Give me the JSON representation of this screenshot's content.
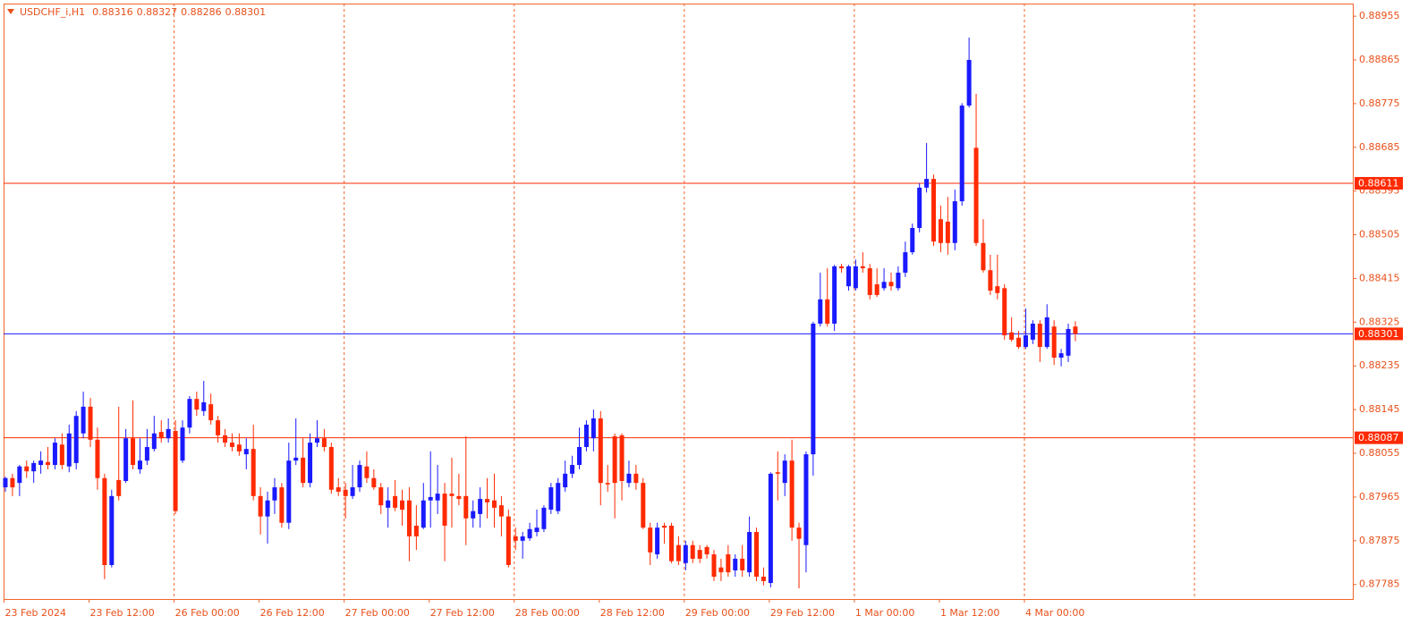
{
  "chart_data": {
    "type": "candlestick",
    "title": "USDCHF_i,H1",
    "header_values": [
      0.88316,
      0.88327,
      0.88286,
      0.88301
    ],
    "up_color": "#1a1aff",
    "down_color": "#ff2a00",
    "grid": true,
    "categories": [
      "23 Feb 2024",
      null,
      null,
      null,
      null,
      null,
      null,
      null,
      null,
      null,
      null,
      null,
      "23 Feb 12:00",
      null,
      null,
      null,
      null,
      null,
      null,
      null,
      null,
      null,
      null,
      null,
      "26 Feb 00:00",
      null,
      null,
      null,
      null,
      null,
      null,
      null,
      null,
      null,
      null,
      null,
      "26 Feb 12:00",
      null,
      null,
      null,
      null,
      null,
      null,
      null,
      null,
      null,
      null,
      null,
      "27 Feb 00:00",
      null,
      null,
      null,
      null,
      null,
      null,
      null,
      null,
      null,
      null,
      null,
      "27 Feb 12:00",
      null,
      null,
      null,
      null,
      null,
      null,
      null,
      null,
      null,
      null,
      null,
      "28 Feb 00:00",
      null,
      null,
      null,
      null,
      null,
      null,
      null,
      null,
      null,
      null,
      null,
      "28 Feb 12:00",
      null,
      null,
      null,
      null,
      null,
      null,
      null,
      null,
      null,
      null,
      null,
      "29 Feb 00:00",
      null,
      null,
      null,
      null,
      null,
      null,
      null,
      null,
      null,
      null,
      null,
      "29 Feb 12:00",
      null,
      null,
      null,
      null,
      null,
      null,
      null,
      null,
      null,
      null,
      null,
      "1 Mar 00:00",
      null,
      null,
      null,
      null,
      null,
      null,
      null,
      null,
      null,
      null,
      null,
      "1 Mar 12:00",
      null,
      null,
      null,
      null,
      null,
      null,
      null,
      null,
      null,
      null,
      null,
      "4 Mar 00:00",
      null,
      null,
      null,
      null,
      null,
      null,
      null
    ],
    "open": [
      0.87985,
      0.88004,
      0.87994,
      0.88028,
      0.88018,
      0.88031,
      0.88037,
      0.88031,
      0.88073,
      0.88028,
      0.88035,
      0.88096,
      0.88151,
      0.88083,
      0.88004,
      0.87825,
      0.88,
      0.87998,
      0.88086,
      0.88022,
      0.8804,
      0.88064,
      0.88099,
      0.88086,
      0.88101,
      0.8804,
      0.88108,
      0.88167,
      0.88142,
      0.88156,
      0.88123,
      0.88092,
      0.88077,
      0.88073,
      0.88053,
      0.88064,
      0.87967,
      0.87925,
      0.87958,
      0.87985,
      0.87912,
      0.8804,
      0.88046,
      0.87994,
      0.88077,
      0.88086,
      0.88068,
      0.87985,
      0.8798,
      0.87967,
      0.87985,
      0.88028,
      0.88004,
      0.87985,
      0.87943,
      0.87967,
      0.87958,
      0.87958,
      0.87906,
      0.87902,
      0.87958,
      0.87958,
      0.87972,
      0.87972,
      0.87967,
      0.87967,
      0.87921,
      0.8793,
      0.87961,
      0.87958,
      0.87948,
      0.87925,
      0.87884,
      0.87875,
      0.8788,
      0.87893,
      0.87899,
      0.87939,
      0.87936,
      0.87985,
      0.88013,
      0.88031,
      0.88068,
      0.88086,
      0.88127,
      0.87994,
      0.8809,
      0.88092,
      0.87994,
      0.88013,
      0.87994,
      0.87902,
      0.87847,
      0.87906,
      0.87906,
      0.87866,
      0.87829,
      0.87866,
      0.87856,
      0.87862,
      0.87847,
      0.8782,
      0.87847,
      0.87814,
      0.87838,
      0.8781,
      0.87893,
      0.87801,
      0.87788,
      0.88016,
      0.87994,
      0.8804,
      0.87902,
      0.87866,
      0.88053,
      0.88322,
      0.88372,
      0.88322,
      0.8844,
      0.88399,
      0.88395,
      0.8844,
      0.88436,
      0.88403,
      0.88395,
      0.88408,
      0.88395,
      0.88427,
      0.88469,
      0.88519,
      0.88602,
      0.8862,
      0.88537,
      0.88532,
      0.88488,
      0.88574,
      0.88771,
      0.88684,
      0.88488,
      0.88432,
      0.88399,
      0.88395,
      0.88304,
      0.88293,
      0.88274,
      0.88289,
      0.88322,
      0.88274,
      0.88316,
      0.88252,
      0.88256,
      0.88316
    ],
    "high": [
      0.88007,
      0.88013,
      0.88031,
      0.8804,
      0.8804,
      0.88059,
      0.88068,
      0.88086,
      0.88096,
      0.88114,
      0.88142,
      0.88182,
      0.88169,
      0.88108,
      0.88013,
      0.8798,
      0.88151,
      0.88105,
      0.88164,
      0.88086,
      0.88105,
      0.88132,
      0.88123,
      0.88127,
      0.88123,
      0.88123,
      0.88173,
      0.88182,
      0.88204,
      0.88178,
      0.88132,
      0.88105,
      0.88096,
      0.88096,
      0.88086,
      0.88114,
      0.87985,
      0.87976,
      0.88004,
      0.87994,
      0.88077,
      0.88127,
      0.88086,
      0.88096,
      0.88123,
      0.88105,
      0.88077,
      0.88004,
      0.87994,
      0.88031,
      0.8804,
      0.88059,
      0.88022,
      0.87994,
      0.87985,
      0.88,
      0.8798,
      0.87985,
      0.87948,
      0.87994,
      0.88059,
      0.88031,
      0.87994,
      0.88046,
      0.88013,
      0.8809,
      0.87958,
      0.87985,
      0.88004,
      0.88013,
      0.87967,
      0.87939,
      0.87902,
      0.87893,
      0.87912,
      0.87939,
      0.87948,
      0.87994,
      0.88004,
      0.8804,
      0.8805,
      0.88108,
      0.88123,
      0.88145,
      0.88142,
      0.88031,
      0.88096,
      0.88096,
      0.8804,
      0.88031,
      0.88004,
      0.87912,
      0.87912,
      0.87912,
      0.87912,
      0.87884,
      0.87875,
      0.87875,
      0.87866,
      0.87866,
      0.87856,
      0.87838,
      0.87866,
      0.87847,
      0.87866,
      0.87925,
      0.87902,
      0.8782,
      0.88016,
      0.88059,
      0.88053,
      0.88083,
      0.87912,
      0.88059,
      0.88326,
      0.88427,
      0.88436,
      0.88443,
      0.88445,
      0.88443,
      0.88454,
      0.88469,
      0.88445,
      0.88436,
      0.88436,
      0.88427,
      0.8844,
      0.88491,
      0.88528,
      0.88611,
      0.88694,
      0.88629,
      0.88565,
      0.88583,
      0.88598,
      0.88776,
      0.88911,
      0.88795,
      0.88537,
      0.88464,
      0.88464,
      0.88403,
      0.88335,
      0.88307,
      0.88353,
      0.88329,
      0.88329,
      0.88362,
      0.88329,
      0.8827,
      0.88322,
      0.88327
    ],
    "low": [
      0.87976,
      0.87967,
      0.87967,
      0.88004,
      0.87994,
      0.88013,
      0.88022,
      0.88022,
      0.88022,
      0.88016,
      0.88022,
      0.88086,
      0.88068,
      0.8798,
      0.87796,
      0.8782,
      0.87958,
      0.87994,
      0.88022,
      0.88013,
      0.88031,
      0.88059,
      0.88077,
      0.88077,
      0.8793,
      0.88035,
      0.88096,
      0.88132,
      0.88132,
      0.88114,
      0.88077,
      0.88068,
      0.88059,
      0.8805,
      0.88022,
      0.87958,
      0.87888,
      0.87869,
      0.8793,
      0.87902,
      0.87899,
      0.88031,
      0.87985,
      0.87985,
      0.88068,
      0.88059,
      0.87972,
      0.87967,
      0.87921,
      0.87961,
      0.87976,
      0.87994,
      0.8798,
      0.8793,
      0.87902,
      0.87936,
      0.87906,
      0.87833,
      0.87856,
      0.87899,
      0.87902,
      0.8793,
      0.87833,
      0.87902,
      0.87948,
      0.87866,
      0.87902,
      0.87902,
      0.87921,
      0.87902,
      0.87884,
      0.8782,
      0.87856,
      0.87838,
      0.87875,
      0.87884,
      0.87893,
      0.8793,
      0.8793,
      0.87976,
      0.88004,
      0.88022,
      0.88059,
      0.88059,
      0.87948,
      0.87976,
      0.87921,
      0.87958,
      0.87985,
      0.8798,
      0.87899,
      0.87825,
      0.87838,
      0.87869,
      0.87829,
      0.87825,
      0.87814,
      0.87829,
      0.87829,
      0.87838,
      0.87792,
      0.87792,
      0.87801,
      0.87801,
      0.87801,
      0.87801,
      0.87792,
      0.87783,
      0.87779,
      0.87958,
      0.87967,
      0.87875,
      0.87777,
      0.8781,
      0.88009,
      0.88316,
      0.88316,
      0.88307,
      0.88427,
      0.8839,
      0.8839,
      0.88427,
      0.88372,
      0.88377,
      0.8839,
      0.8839,
      0.8839,
      0.88418,
      0.88464,
      0.8851,
      0.88592,
      0.88482,
      0.88469,
      0.88464,
      0.88473,
      0.88565,
      0.88767,
      0.88482,
      0.88427,
      0.88381,
      0.88372,
      0.88289,
      0.88285,
      0.8827,
      0.8827,
      0.8828,
      0.88243,
      0.8827,
      0.88237,
      0.88234,
      0.88243,
      0.88286
    ],
    "close": [
      0.88004,
      0.87985,
      0.88028,
      0.88018,
      0.88035,
      0.8804,
      0.88031,
      0.88077,
      0.88031,
      0.88096,
      0.88132,
      0.88151,
      0.88083,
      0.88004,
      0.87825,
      0.87967,
      0.87967,
      0.88086,
      0.88031,
      0.8804,
      0.88068,
      0.88096,
      0.88086,
      0.88105,
      0.87936,
      0.88108,
      0.88167,
      0.88145,
      0.8816,
      0.88123,
      0.88092,
      0.88077,
      0.88068,
      0.88059,
      0.88064,
      0.87967,
      0.87925,
      0.87958,
      0.87985,
      0.87912,
      0.8804,
      0.88046,
      0.87994,
      0.88077,
      0.88086,
      0.88068,
      0.8798,
      0.87976,
      0.87967,
      0.87985,
      0.88031,
      0.88004,
      0.87985,
      0.87948,
      0.87958,
      0.87943,
      0.87939,
      0.87884,
      0.87884,
      0.87958,
      0.87965,
      0.87972,
      0.87906,
      0.87967,
      0.87961,
      0.87921,
      0.87936,
      0.87961,
      0.87954,
      0.87943,
      0.87925,
      0.87825,
      0.87875,
      0.87884,
      0.87899,
      0.87902,
      0.87943,
      0.87985,
      0.87994,
      0.88013,
      0.88031,
      0.88068,
      0.88114,
      0.88127,
      0.87994,
      0.87991,
      0.87994,
      0.87998,
      0.88013,
      0.87994,
      0.87902,
      0.87851,
      0.87902,
      0.87902,
      0.87833,
      0.87833,
      0.87866,
      0.87838,
      0.87838,
      0.87847,
      0.87801,
      0.8781,
      0.8781,
      0.87838,
      0.87814,
      0.87893,
      0.87801,
      0.87792,
      0.88013,
      0.88013,
      0.8804,
      0.87902,
      0.87879,
      0.88053,
      0.88322,
      0.88372,
      0.88322,
      0.8844,
      0.88436,
      0.8844,
      0.8844,
      0.88436,
      0.88381,
      0.88381,
      0.88408,
      0.88399,
      0.88427,
      0.88469,
      0.88519,
      0.88602,
      0.8862,
      0.88491,
      0.88488,
      0.88488,
      0.88574,
      0.88771,
      0.88865,
      0.88488,
      0.88432,
      0.8839,
      0.88385,
      0.88298,
      0.88289,
      0.88274,
      0.88298,
      0.88322,
      0.88274,
      0.88335,
      0.88252,
      0.88261,
      0.88311,
      0.88301
    ],
    "ylim": [
      0.87755,
      0.88981
    ],
    "yticks": [
      0.87785,
      0.87875,
      0.87965,
      0.88055,
      0.88145,
      0.88235,
      0.88325,
      0.88415,
      0.88505,
      0.88595,
      0.88685,
      0.88775,
      0.88865,
      0.88955
    ],
    "levels": [
      {
        "value": 0.88611,
        "color": "#ff2a00",
        "label_color": "#ff2a00"
      },
      {
        "value": 0.88301,
        "color": "#1a1aff",
        "label_color": "#ff2a00"
      },
      {
        "value": 0.88087,
        "color": "#ff2a00",
        "label_color": "#ff2a00"
      }
    ]
  }
}
